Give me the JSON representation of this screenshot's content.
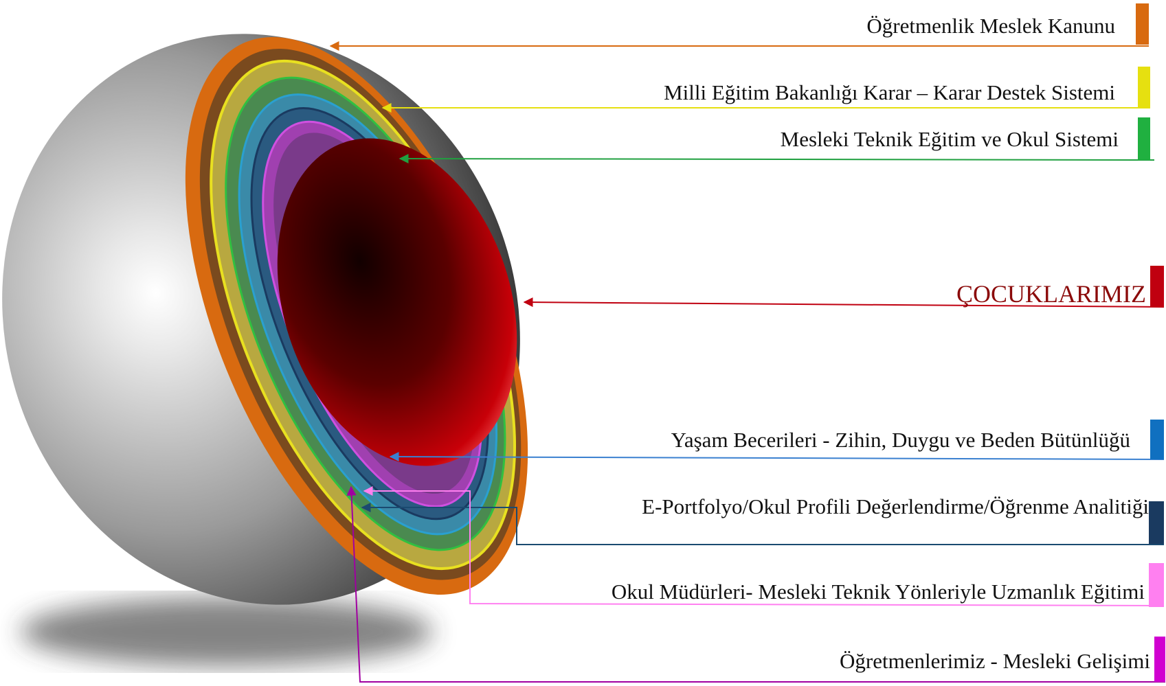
{
  "labels": [
    "Öğretmenlik Meslek Kanunu",
    "Milli Eğitim Bakanlığı Karar – Karar Destek Sistemi",
    "Mesleki Teknik Eğitim ve Okul Sistemi",
    "Yaşam Becerileri - Zihin, Duygu ve Beden Bütünlüğü",
    "E-Portfolyo/Okul Profili Değerlendirme/Öğrenme Analitiği",
    "Okul Müdürleri- Mesleki Teknik Yönleriyle Uzmanlık Eğitimi",
    "Öğretmenlerimiz - Mesleki Gelişimi"
  ],
  "center": "ÇOCUKLARIMIZ"
}
